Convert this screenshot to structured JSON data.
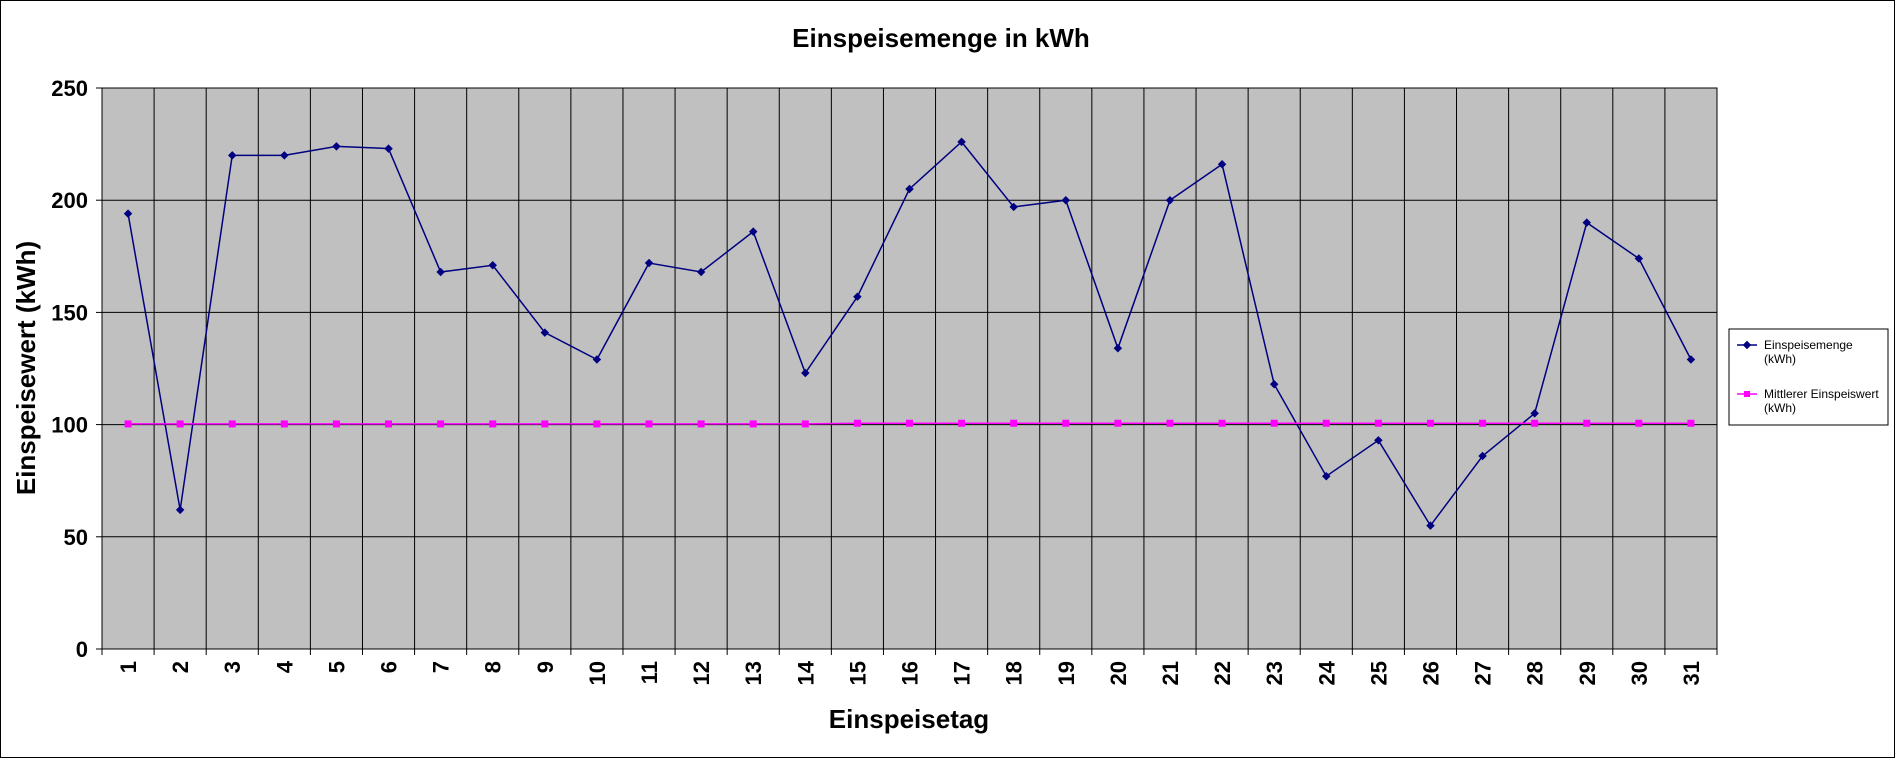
{
  "chart_data": {
    "type": "line",
    "title": "Einspeisemenge in kWh",
    "xlabel": "Einspeisetag",
    "ylabel": "Einspeisewert  (kWh)",
    "ylim": [
      0,
      250
    ],
    "yticks": [
      0,
      50,
      100,
      150,
      200,
      250
    ],
    "grid": true,
    "legend_position": "right",
    "plot_background": "#c0c0c0",
    "categories": [
      "1",
      "2",
      "3",
      "4",
      "5",
      "6",
      "7",
      "8",
      "9",
      "10",
      "11",
      "12",
      "13",
      "14",
      "15",
      "16",
      "17",
      "18",
      "19",
      "20",
      "21",
      "22",
      "23",
      "24",
      "25",
      "26",
      "27",
      "28",
      "29",
      "30",
      "31"
    ],
    "series": [
      {
        "name": "Einspeisemenge (kWh)",
        "legend_lines": [
          "Einspeisemenge",
          "(kWh)"
        ],
        "color": "#000080",
        "marker": "diamond",
        "values": [
          194,
          62,
          220,
          220,
          224,
          223,
          168,
          171,
          141,
          129,
          172,
          168,
          186,
          123,
          157,
          205,
          226,
          197,
          200,
          134,
          200,
          216,
          118,
          77,
          93,
          55,
          86,
          105,
          190,
          174,
          129
        ]
      },
      {
        "name": "Mittlerer Einspeiswert (kWh)",
        "legend_lines": [
          "Mittlerer Einspeiswert",
          "(kWh)"
        ],
        "color": "#ff00ff",
        "marker": "square",
        "values": [
          100.3,
          100.3,
          100.3,
          100.3,
          100.3,
          100.3,
          100.3,
          100.3,
          100.3,
          100.3,
          100.3,
          100.3,
          100.3,
          100.3,
          100.6,
          100.6,
          100.6,
          100.6,
          100.6,
          100.6,
          100.6,
          100.6,
          100.6,
          100.6,
          100.6,
          100.6,
          100.6,
          100.6,
          100.6,
          100.6,
          100.6
        ]
      }
    ]
  }
}
